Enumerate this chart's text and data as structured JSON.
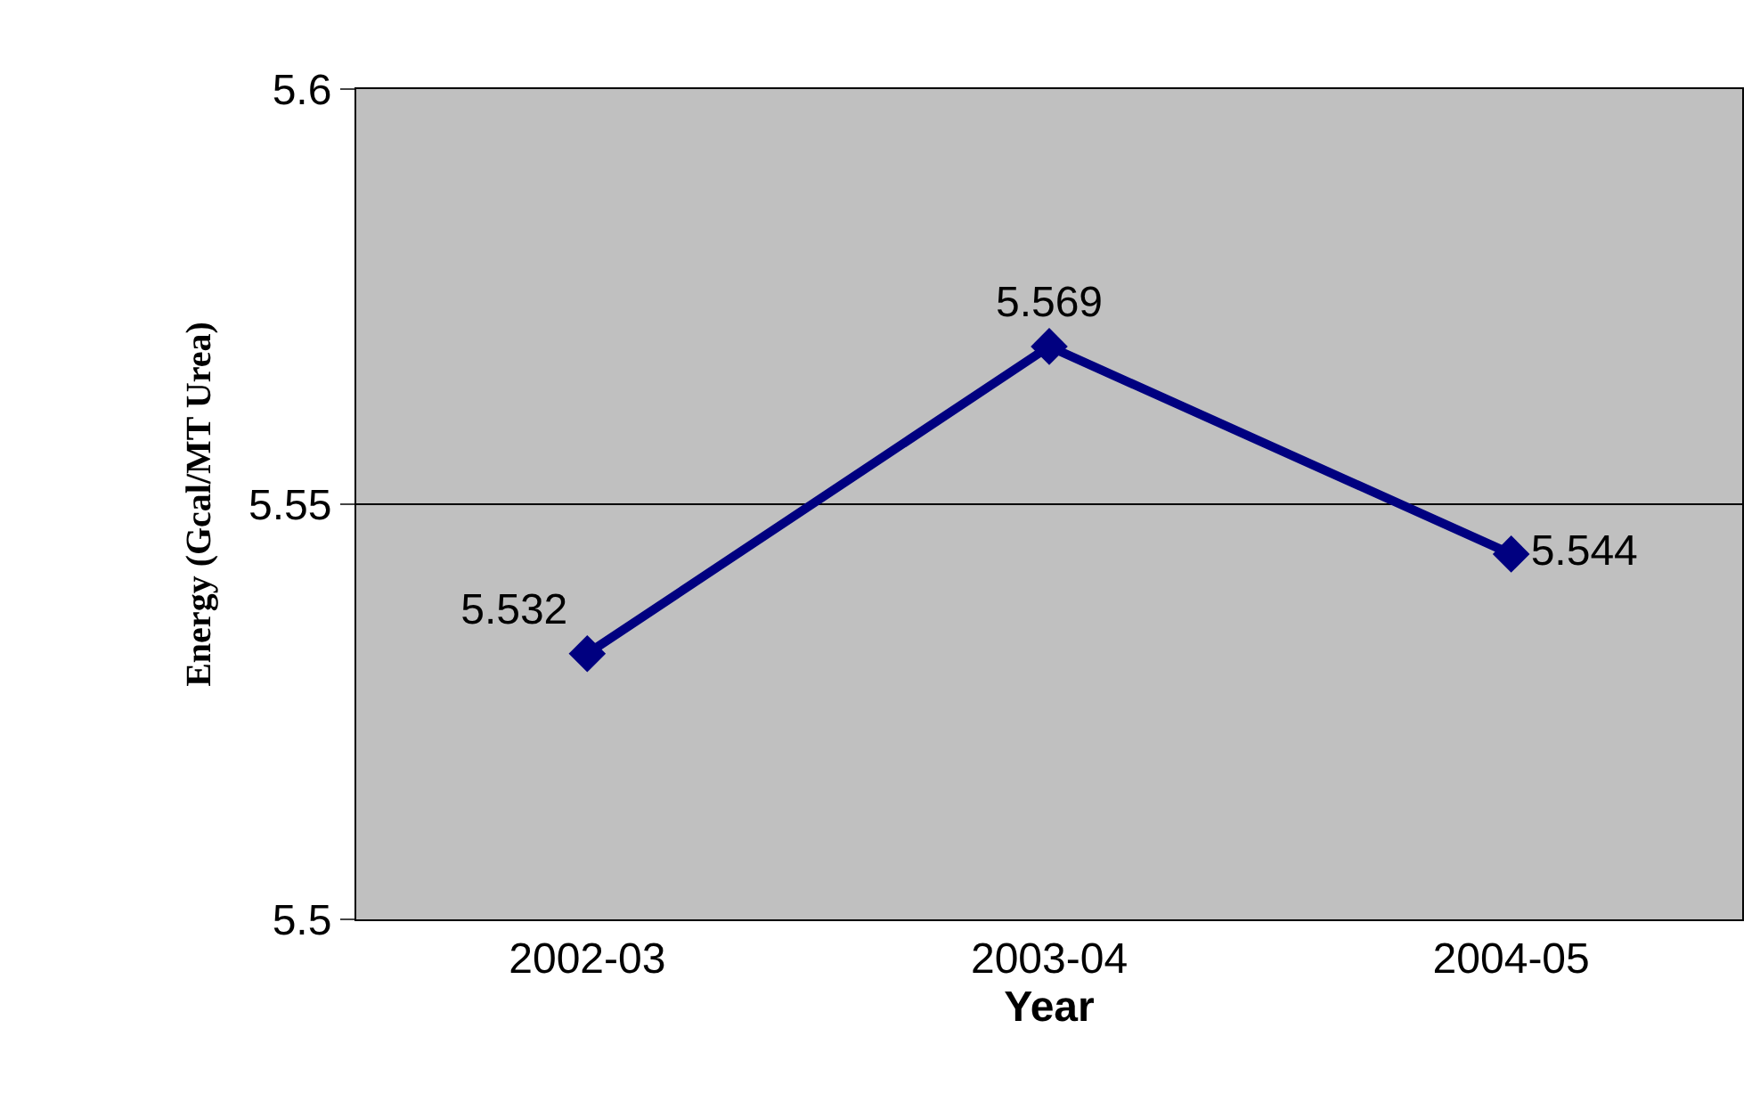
{
  "chart_data": {
    "type": "line",
    "categories": [
      "2002-03",
      "2003-04",
      "2004-05"
    ],
    "series": [
      {
        "color": "#000080",
        "values": [
          5.532,
          5.569,
          5.544
        ]
      }
    ],
    "xlabel": "Year",
    "ylabel": "Energy (Gcal/MT Urea)",
    "ylim": [
      5.5,
      5.6
    ],
    "yticks": [
      5.5,
      5.55,
      5.6
    ],
    "grid": "y",
    "marker": "diamond",
    "line_style": "solid",
    "data_labels": true,
    "legend": false
  }
}
